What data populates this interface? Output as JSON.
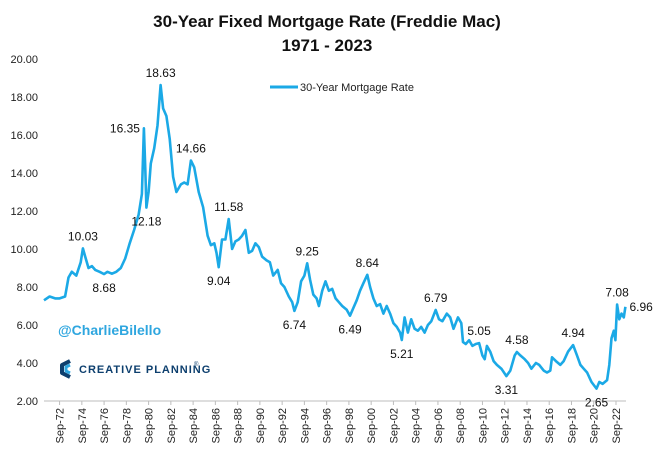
{
  "chart_data": {
    "type": "line",
    "title": "30-Year Fixed Mortgage Rate (Freddie Mac)",
    "subtitle": "1971 - 2023",
    "ylim": [
      2,
      20
    ],
    "yticks": [
      "2.00",
      "4.00",
      "6.00",
      "8.00",
      "10.00",
      "12.00",
      "14.00",
      "16.00",
      "18.00",
      "20.00"
    ],
    "xlim": [
      1971.3,
      2023.6
    ],
    "xticks": [
      {
        "label": "Sep-72",
        "x": 1972.7
      },
      {
        "label": "Sep-74",
        "x": 1974.7
      },
      {
        "label": "Sep-76",
        "x": 1976.7
      },
      {
        "label": "Sep-78",
        "x": 1978.7
      },
      {
        "label": "Sep-80",
        "x": 1980.7
      },
      {
        "label": "Sep-82",
        "x": 1982.7
      },
      {
        "label": "Sep-84",
        "x": 1984.7
      },
      {
        "label": "Sep-86",
        "x": 1986.7
      },
      {
        "label": "Sep-88",
        "x": 1988.7
      },
      {
        "label": "Sep-90",
        "x": 1990.7
      },
      {
        "label": "Sep-92",
        "x": 1992.7
      },
      {
        "label": "Sep-94",
        "x": 1994.7
      },
      {
        "label": "Sep-96",
        "x": 1996.7
      },
      {
        "label": "Sep-98",
        "x": 1998.7
      },
      {
        "label": "Sep-00",
        "x": 2000.7
      },
      {
        "label": "Sep-02",
        "x": 2002.7
      },
      {
        "label": "Sep-04",
        "x": 2004.7
      },
      {
        "label": "Sep-06",
        "x": 2006.7
      },
      {
        "label": "Sep-08",
        "x": 2008.7
      },
      {
        "label": "Sep-10",
        "x": 2010.7
      },
      {
        "label": "Sep-12",
        "x": 2012.7
      },
      {
        "label": "Sep-14",
        "x": 2014.7
      },
      {
        "label": "Sep-16",
        "x": 2016.7
      },
      {
        "label": "Sep-18",
        "x": 2018.7
      },
      {
        "label": "Sep-20",
        "x": 2020.7
      },
      {
        "label": "Sep-22",
        "x": 2022.7
      }
    ],
    "color": "#1ba9e6",
    "legend": "30-Year Mortgage Rate",
    "legend_position": "top-center",
    "series": [
      {
        "name": "30-Year Mortgage Rate",
        "points": [
          [
            1971.3,
            7.3
          ],
          [
            1971.8,
            7.5
          ],
          [
            1972.3,
            7.4
          ],
          [
            1972.7,
            7.4
          ],
          [
            1973.2,
            7.5
          ],
          [
            1973.5,
            8.5
          ],
          [
            1973.8,
            8.8
          ],
          [
            1974.2,
            8.6
          ],
          [
            1974.6,
            9.3
          ],
          [
            1974.8,
            10.03
          ],
          [
            1975.0,
            9.6
          ],
          [
            1975.3,
            9.0
          ],
          [
            1975.6,
            9.1
          ],
          [
            1975.9,
            8.9
          ],
          [
            1976.3,
            8.8
          ],
          [
            1976.7,
            8.68
          ],
          [
            1977.0,
            8.8
          ],
          [
            1977.4,
            8.7
          ],
          [
            1977.8,
            8.8
          ],
          [
            1978.2,
            9.0
          ],
          [
            1978.6,
            9.5
          ],
          [
            1979.0,
            10.3
          ],
          [
            1979.4,
            11.0
          ],
          [
            1979.8,
            11.8
          ],
          [
            1980.1,
            12.9
          ],
          [
            1980.28,
            16.35
          ],
          [
            1980.4,
            14.2
          ],
          [
            1980.5,
            12.18
          ],
          [
            1980.7,
            13.0
          ],
          [
            1980.9,
            14.5
          ],
          [
            1981.2,
            15.3
          ],
          [
            1981.5,
            16.5
          ],
          [
            1981.78,
            18.63
          ],
          [
            1982.0,
            17.4
          ],
          [
            1982.3,
            17.0
          ],
          [
            1982.6,
            15.8
          ],
          [
            1982.9,
            13.8
          ],
          [
            1983.2,
            13.0
          ],
          [
            1983.6,
            13.4
          ],
          [
            1983.9,
            13.5
          ],
          [
            1984.2,
            13.4
          ],
          [
            1984.5,
            14.66
          ],
          [
            1984.8,
            14.3
          ],
          [
            1985.2,
            13.0
          ],
          [
            1985.6,
            12.2
          ],
          [
            1986.0,
            10.7
          ],
          [
            1986.3,
            10.2
          ],
          [
            1986.6,
            10.3
          ],
          [
            1986.8,
            9.8
          ],
          [
            1987.0,
            9.04
          ],
          [
            1987.3,
            10.5
          ],
          [
            1987.6,
            10.5
          ],
          [
            1987.9,
            11.58
          ],
          [
            1988.2,
            10.0
          ],
          [
            1988.5,
            10.4
          ],
          [
            1988.8,
            10.5
          ],
          [
            1989.1,
            10.7
          ],
          [
            1989.4,
            11.0
          ],
          [
            1989.7,
            9.8
          ],
          [
            1990.0,
            9.9
          ],
          [
            1990.3,
            10.3
          ],
          [
            1990.6,
            10.1
          ],
          [
            1990.9,
            9.6
          ],
          [
            1991.3,
            9.4
          ],
          [
            1991.6,
            9.3
          ],
          [
            1991.9,
            8.6
          ],
          [
            1992.3,
            8.9
          ],
          [
            1992.6,
            8.2
          ],
          [
            1992.9,
            8.0
          ],
          [
            1993.3,
            7.5
          ],
          [
            1993.6,
            7.2
          ],
          [
            1993.8,
            6.74
          ],
          [
            1994.1,
            7.2
          ],
          [
            1994.4,
            8.3
          ],
          [
            1994.7,
            8.6
          ],
          [
            1994.95,
            9.25
          ],
          [
            1995.2,
            8.4
          ],
          [
            1995.5,
            7.6
          ],
          [
            1995.8,
            7.4
          ],
          [
            1996.0,
            7.0
          ],
          [
            1996.3,
            7.8
          ],
          [
            1996.6,
            8.3
          ],
          [
            1996.9,
            7.8
          ],
          [
            1997.2,
            7.9
          ],
          [
            1997.5,
            7.4
          ],
          [
            1997.8,
            7.2
          ],
          [
            1998.1,
            7.0
          ],
          [
            1998.5,
            6.8
          ],
          [
            1998.8,
            6.49
          ],
          [
            1999.1,
            6.9
          ],
          [
            1999.4,
            7.3
          ],
          [
            1999.7,
            7.8
          ],
          [
            2000.0,
            8.2
          ],
          [
            2000.35,
            8.64
          ],
          [
            2000.6,
            8.0
          ],
          [
            2000.9,
            7.4
          ],
          [
            2001.2,
            7.0
          ],
          [
            2001.5,
            7.1
          ],
          [
            2001.8,
            6.6
          ],
          [
            2002.1,
            7.0
          ],
          [
            2002.4,
            6.6
          ],
          [
            2002.7,
            6.1
          ],
          [
            2003.0,
            5.9
          ],
          [
            2003.3,
            5.6
          ],
          [
            2003.45,
            5.21
          ],
          [
            2003.7,
            6.4
          ],
          [
            2004.0,
            5.6
          ],
          [
            2004.3,
            6.3
          ],
          [
            2004.6,
            5.8
          ],
          [
            2004.9,
            5.7
          ],
          [
            2005.2,
            5.9
          ],
          [
            2005.5,
            5.6
          ],
          [
            2005.8,
            6.0
          ],
          [
            2006.1,
            6.2
          ],
          [
            2006.5,
            6.79
          ],
          [
            2006.8,
            6.3
          ],
          [
            2007.1,
            6.2
          ],
          [
            2007.5,
            6.6
          ],
          [
            2007.8,
            6.4
          ],
          [
            2008.1,
            5.8
          ],
          [
            2008.5,
            6.4
          ],
          [
            2008.8,
            6.1
          ],
          [
            2008.95,
            5.1
          ],
          [
            2009.2,
            5.0
          ],
          [
            2009.5,
            5.2
          ],
          [
            2009.8,
            4.9
          ],
          [
            2010.1,
            5.0
          ],
          [
            2010.4,
            5.05
          ],
          [
            2010.7,
            4.4
          ],
          [
            2010.9,
            4.2
          ],
          [
            2011.1,
            4.9
          ],
          [
            2011.4,
            4.6
          ],
          [
            2011.7,
            4.1
          ],
          [
            2012.0,
            3.9
          ],
          [
            2012.4,
            3.7
          ],
          [
            2012.85,
            3.31
          ],
          [
            2013.2,
            3.6
          ],
          [
            2013.6,
            4.4
          ],
          [
            2013.8,
            4.58
          ],
          [
            2014.1,
            4.4
          ],
          [
            2014.5,
            4.2
          ],
          [
            2014.8,
            4.0
          ],
          [
            2015.1,
            3.7
          ],
          [
            2015.5,
            4.0
          ],
          [
            2015.8,
            3.9
          ],
          [
            2016.2,
            3.6
          ],
          [
            2016.5,
            3.5
          ],
          [
            2016.8,
            3.6
          ],
          [
            2016.95,
            4.3
          ],
          [
            2017.3,
            4.1
          ],
          [
            2017.7,
            3.9
          ],
          [
            2018.0,
            4.1
          ],
          [
            2018.4,
            4.6
          ],
          [
            2018.85,
            4.94
          ],
          [
            2019.2,
            4.4
          ],
          [
            2019.5,
            3.9
          ],
          [
            2019.8,
            3.7
          ],
          [
            2020.1,
            3.5
          ],
          [
            2020.5,
            3.0
          ],
          [
            2020.95,
            2.65
          ],
          [
            2021.2,
            3.0
          ],
          [
            2021.5,
            2.9
          ],
          [
            2021.9,
            3.1
          ],
          [
            2022.1,
            3.9
          ],
          [
            2022.3,
            5.3
          ],
          [
            2022.5,
            5.7
          ],
          [
            2022.65,
            5.2
          ],
          [
            2022.8,
            7.08
          ],
          [
            2023.0,
            6.3
          ],
          [
            2023.2,
            6.6
          ],
          [
            2023.4,
            6.4
          ],
          [
            2023.55,
            6.96
          ]
        ]
      }
    ],
    "annotations": [
      {
        "text": "10.03",
        "x": 1974.8,
        "y": 10.03,
        "pos": "above"
      },
      {
        "text": "8.68",
        "x": 1976.7,
        "y": 8.68,
        "pos": "below"
      },
      {
        "text": "16.35",
        "x": 1980.28,
        "y": 16.35,
        "pos": "left"
      },
      {
        "text": "12.18",
        "x": 1980.5,
        "y": 12.18,
        "pos": "below"
      },
      {
        "text": "18.63",
        "x": 1981.78,
        "y": 18.63,
        "pos": "above"
      },
      {
        "text": "14.66",
        "x": 1984.5,
        "y": 14.66,
        "pos": "above"
      },
      {
        "text": "9.04",
        "x": 1987.0,
        "y": 9.04,
        "pos": "below"
      },
      {
        "text": "11.58",
        "x": 1987.9,
        "y": 11.58,
        "pos": "above"
      },
      {
        "text": "6.74",
        "x": 1993.8,
        "y": 6.74,
        "pos": "below"
      },
      {
        "text": "9.25",
        "x": 1994.95,
        "y": 9.25,
        "pos": "above"
      },
      {
        "text": "6.49",
        "x": 1998.8,
        "y": 6.49,
        "pos": "below"
      },
      {
        "text": "8.64",
        "x": 2000.35,
        "y": 8.64,
        "pos": "above"
      },
      {
        "text": "5.21",
        "x": 2003.45,
        "y": 5.21,
        "pos": "below"
      },
      {
        "text": "6.79",
        "x": 2006.5,
        "y": 6.79,
        "pos": "above"
      },
      {
        "text": "5.05",
        "x": 2010.4,
        "y": 5.05,
        "pos": "above"
      },
      {
        "text": "3.31",
        "x": 2012.85,
        "y": 3.31,
        "pos": "below"
      },
      {
        "text": "4.58",
        "x": 2013.8,
        "y": 4.58,
        "pos": "above"
      },
      {
        "text": "4.94",
        "x": 2018.85,
        "y": 4.94,
        "pos": "above"
      },
      {
        "text": "2.65",
        "x": 2020.95,
        "y": 2.65,
        "pos": "below"
      },
      {
        "text": "7.08",
        "x": 2022.8,
        "y": 7.08,
        "pos": "above"
      },
      {
        "text": "6.96",
        "x": 2023.55,
        "y": 6.96,
        "pos": "right"
      }
    ]
  },
  "branding": {
    "handle": "@CharlieBilello",
    "company": "CREATIVE PLANNING",
    "trademark": "®",
    "accent": "#2ea6df",
    "brand_color": "#0d3f6e"
  }
}
